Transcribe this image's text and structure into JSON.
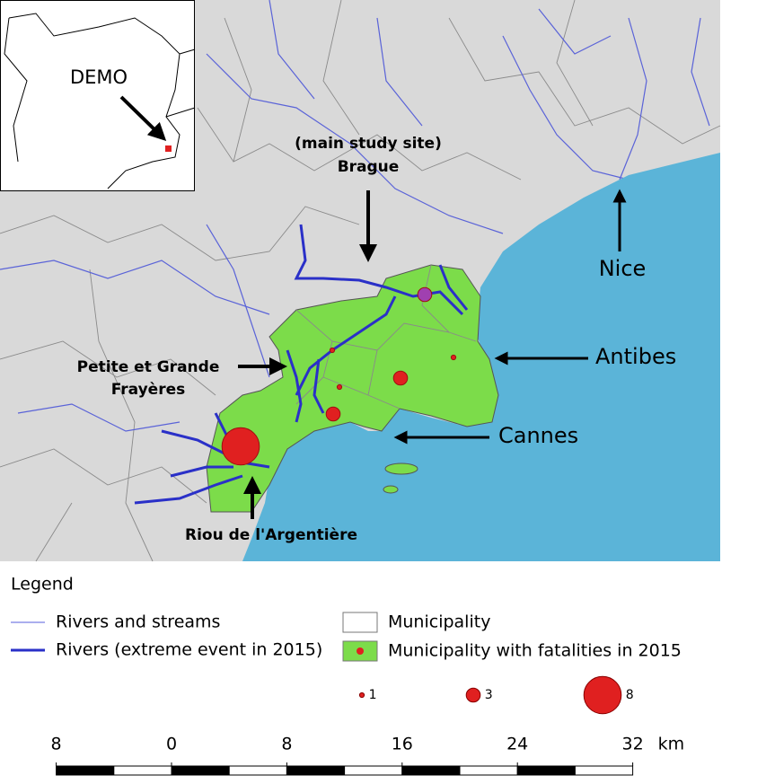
{
  "inset": {
    "label": "DEMO"
  },
  "map_labels": {
    "study_site_note": "(main study site)",
    "brague": "Brague",
    "nice": "Nice",
    "antibes": "Antibes",
    "cannes": "Cannes",
    "frayeres": [
      "Petite et Grande",
      "Frayères"
    ],
    "riou": "Riou de l'Argentière"
  },
  "fatalities": [
    3,
    1,
    1,
    3,
    1,
    3,
    8
  ],
  "legend": {
    "title": "Legend",
    "rivers": "Rivers and streams",
    "rivers_extreme": "Rivers (extreme event in 2015)",
    "municipality": "Municipality",
    "municipality_fatalities": "Municipality with fatalities in 2015",
    "sizes": [
      1,
      3,
      8
    ]
  },
  "scale_bar": {
    "ticks": [
      {
        "value": -8,
        "label": "8"
      },
      0,
      8,
      16,
      24,
      32
    ],
    "unit": "km"
  }
}
